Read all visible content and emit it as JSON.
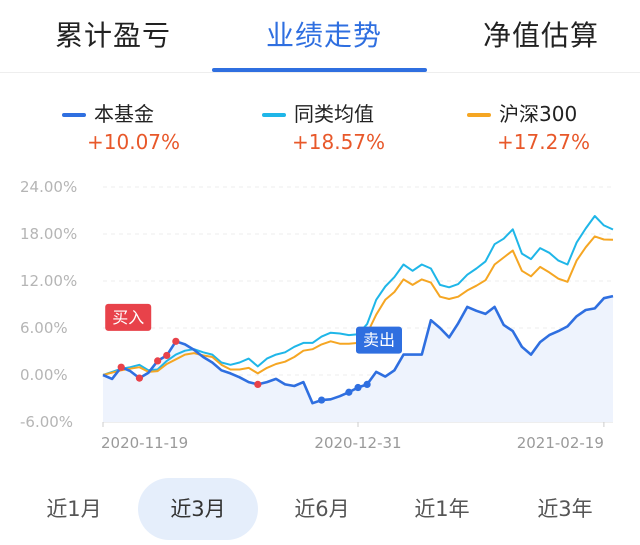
{
  "tabs": [
    {
      "label": "累计盈亏",
      "active": false
    },
    {
      "label": "业绩走势",
      "active": true
    },
    {
      "label": "净值估算",
      "active": false
    }
  ],
  "legend": [
    {
      "name": "本基金",
      "value": "+10.07%",
      "color": "#2f6fe0"
    },
    {
      "name": "同类均值",
      "value": "+18.57%",
      "color": "#1fb6e8"
    },
    {
      "name": "沪深300",
      "value": "+17.27%",
      "color": "#f5a623"
    }
  ],
  "ranges": [
    {
      "label": "近1月",
      "active": false
    },
    {
      "label": "近3月",
      "active": true
    },
    {
      "label": "近6月",
      "active": false
    },
    {
      "label": "近1年",
      "active": false
    },
    {
      "label": "近3年",
      "active": false
    }
  ],
  "markers": {
    "buy": "买入",
    "sell": "卖出"
  },
  "colors": {
    "value_up": "#e8582a",
    "buy_marker": "#e8424a",
    "sell_marker": "#2f6fe0",
    "accent": "#2f6fe0"
  },
  "chart_data": {
    "type": "line",
    "ylim": [
      -6,
      24
    ],
    "yticks": [
      "24.00%",
      "18.00%",
      "12.00%",
      "6.00%",
      "0.00%",
      "-6.00%"
    ],
    "ytick_values": [
      24,
      18,
      12,
      6,
      0,
      -6
    ],
    "xlabels": [
      "2020-11-19",
      "2020-12-31",
      "2021-02-19"
    ],
    "xlabel_index": [
      0,
      28,
      55
    ],
    "series": [
      {
        "name": "本基金",
        "color": "#2f6fe0",
        "values": [
          0,
          -0.5,
          1,
          0.5,
          -0.4,
          0.3,
          1.8,
          2.5,
          4.3,
          3.9,
          3.2,
          2.3,
          1.6,
          0.6,
          0.2,
          -0.3,
          -0.9,
          -1.2,
          -0.9,
          -0.5,
          -1.2,
          -1.4,
          -0.9,
          -3.6,
          -3.2,
          -3.1,
          -2.7,
          -2.2,
          -1.6,
          -1.2,
          0.4,
          -0.2,
          0.6,
          2.6,
          2.6,
          2.6,
          7,
          6,
          4.8,
          6.6,
          8.7,
          8.2,
          7.8,
          8.7,
          6.4,
          5.6,
          3.6,
          2.6,
          4.2,
          5.1,
          5.6,
          6.2,
          7.5,
          8.3,
          8.5,
          9.8,
          10.07
        ]
      },
      {
        "name": "同类均值",
        "color": "#1fb6e8",
        "values": [
          0,
          0.4,
          0.8,
          1,
          1.3,
          0.6,
          0.7,
          1.8,
          2.6,
          3.1,
          3.3,
          2.9,
          2.6,
          1.6,
          1.3,
          1.6,
          2.1,
          1.1,
          2.1,
          2.6,
          2.9,
          3.6,
          4.1,
          4.1,
          4.9,
          5.4,
          5.3,
          5.1,
          5.2,
          6.5,
          9.6,
          11.3,
          12.5,
          14.1,
          13.3,
          14.1,
          13.6,
          11.5,
          11.2,
          11.6,
          12.8,
          13.6,
          14.5,
          16.7,
          17.4,
          18.6,
          15.5,
          14.8,
          16.2,
          15.6,
          14.6,
          14.1,
          16.9,
          18.7,
          20.3,
          19.1,
          18.57
        ]
      },
      {
        "name": "沪深300",
        "color": "#f5a623",
        "values": [
          0,
          0.3,
          0.6,
          0.8,
          1,
          0.4,
          0.5,
          1.4,
          2,
          2.6,
          2.8,
          2.5,
          2.3,
          1.3,
          0.7,
          0.7,
          0.9,
          0.2,
          0.9,
          1.4,
          1.7,
          2.3,
          3.1,
          3.3,
          3.9,
          4.3,
          4,
          4,
          4.1,
          5.3,
          7.7,
          9.6,
          10.6,
          12.2,
          11.5,
          12.2,
          11.8,
          10,
          9.7,
          10,
          10.8,
          11.4,
          12.1,
          14.1,
          15,
          15.9,
          13.3,
          12.6,
          13.8,
          13.1,
          12.3,
          11.9,
          14.6,
          16.3,
          17.7,
          17.3,
          17.27
        ]
      }
    ],
    "buy_points": [
      {
        "i": 2,
        "v": 1
      },
      {
        "i": 4,
        "v": -0.4
      },
      {
        "i": 6,
        "v": 1.8
      },
      {
        "i": 7,
        "v": 2.5
      },
      {
        "i": 8,
        "v": 4.3
      },
      {
        "i": 17,
        "v": -1.2
      }
    ],
    "sell_points": [
      {
        "i": 24,
        "v": -3.2
      },
      {
        "i": 27,
        "v": -2.2
      },
      {
        "i": 28,
        "v": -1.6
      },
      {
        "i": 29,
        "v": -1.2
      }
    ],
    "buy_label_at": {
      "i": 2,
      "v": 5.5
    },
    "sell_label_at": {
      "i": 28,
      "v": 2.6
    },
    "grid": true,
    "area_fill_series": "本基金"
  }
}
